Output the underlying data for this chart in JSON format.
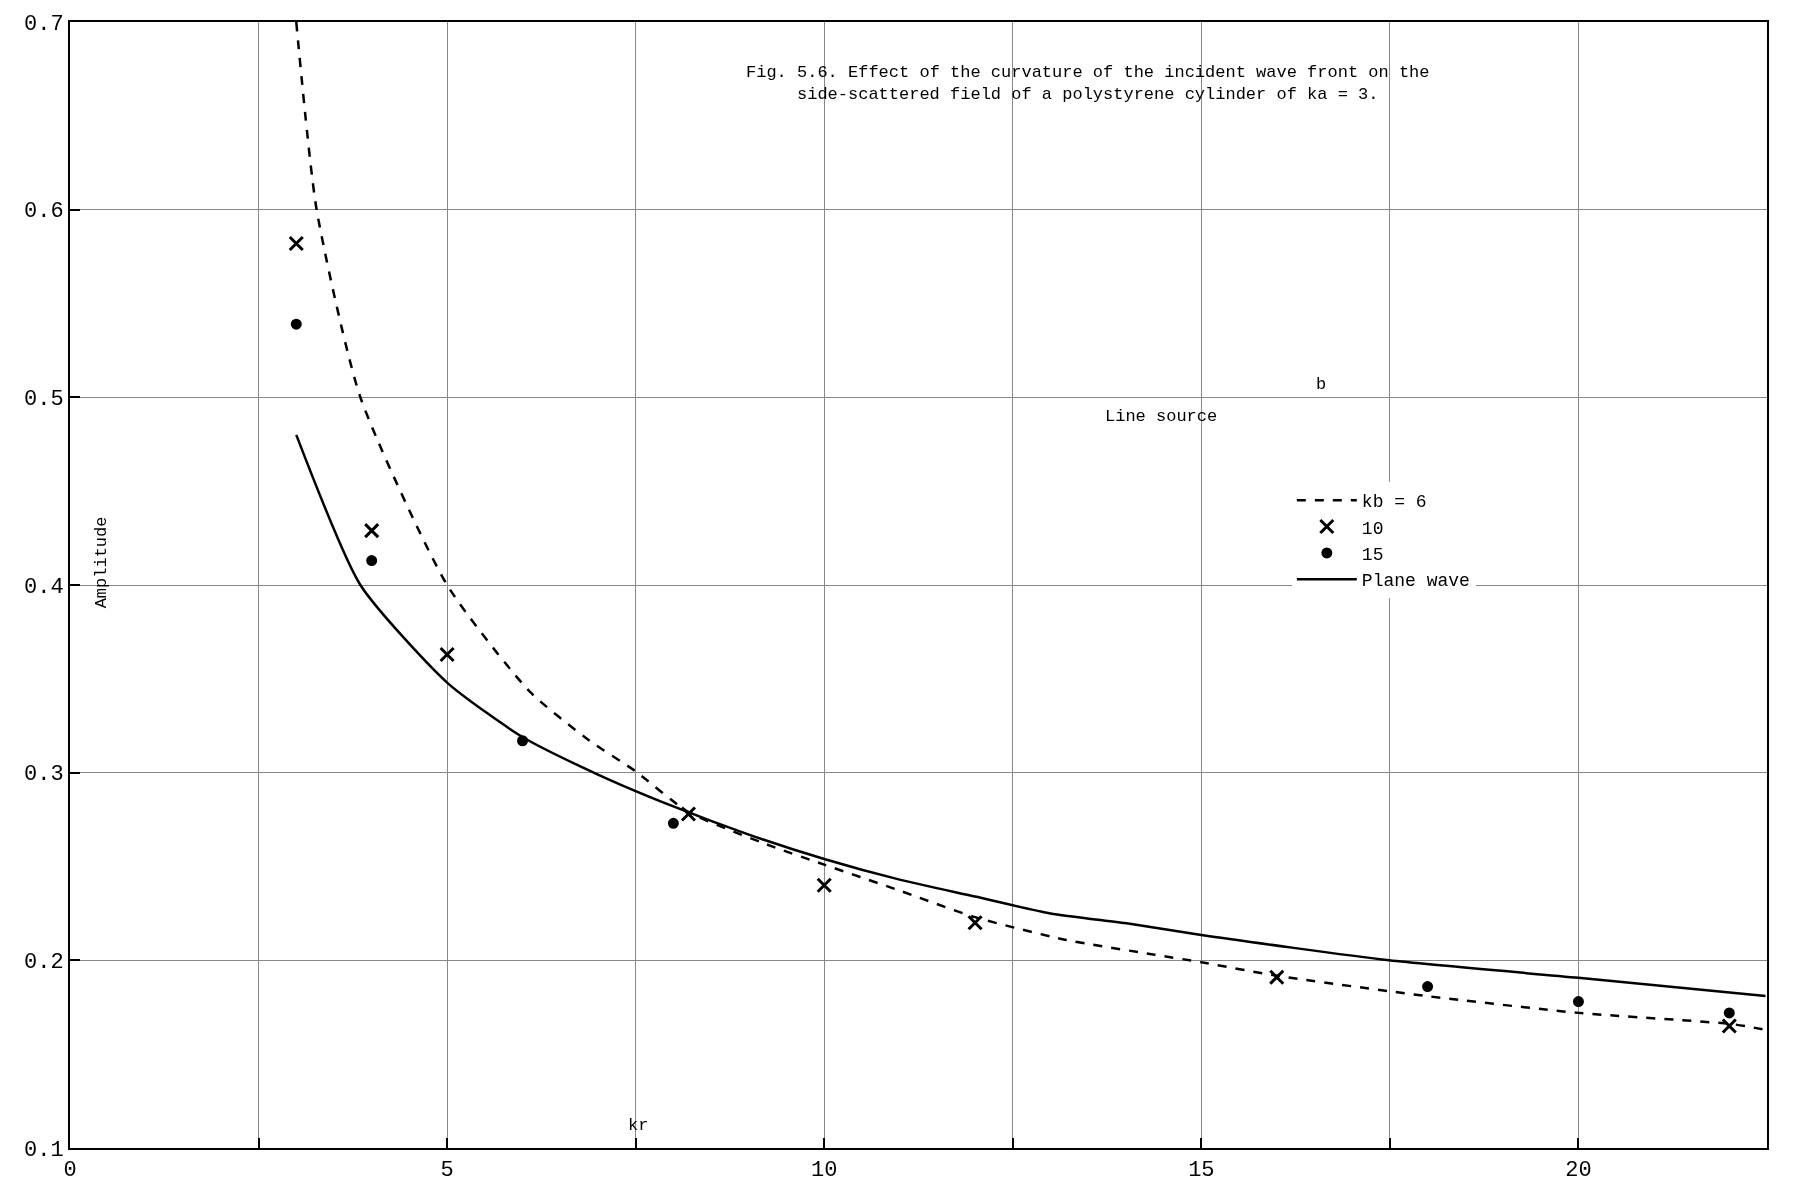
{
  "chart_data": {
    "type": "line",
    "title": "Fig. 5.6. Effect of the curvature of the incident wave front on the side-scattered field of a polystyrene cylinder of ka = 3.",
    "xlabel": "kr",
    "ylabel": "Amplitude",
    "xlim": [
      0,
      22.5
    ],
    "ylim": [
      0.1,
      0.7
    ],
    "xticks": [
      0,
      {
        "value": 2.5,
        "label": null
      },
      5,
      {
        "value": 7.5,
        "label": null
      },
      10,
      {
        "value": 12.5,
        "label": null
      },
      15,
      {
        "value": 17.5,
        "label": null
      },
      20
    ],
    "yticks": [
      0.1,
      0.2,
      0.3,
      0.4,
      0.5,
      0.6,
      0.7
    ],
    "grid": true,
    "legend": "right",
    "annotations": [
      "Line source",
      "b"
    ],
    "series": [
      {
        "name": "kb = 6",
        "line_style": "dashed",
        "marker": "none",
        "color": "#000000",
        "x": [
          3.0,
          3.27,
          3.85,
          5.0,
          6.1,
          6.89,
          7.49,
          8.2,
          9.29,
          10.0,
          10.94,
          12.0,
          13.19,
          14.38,
          15.0,
          15.97,
          17.98,
          20.0,
          22.04,
          22.48
        ],
        "values": [
          0.7,
          0.6,
          0.5,
          0.4,
          0.343,
          0.317,
          0.301,
          0.279,
          0.261,
          0.251,
          0.238,
          0.223,
          0.211,
          0.203,
          0.199,
          0.192,
          0.181,
          0.172,
          0.166,
          0.163
        ]
      },
      {
        "name": "10",
        "type": "scatter",
        "marker": "cross",
        "color": "#000000",
        "x": [
          3,
          4,
          5,
          8.2,
          10,
          12,
          16,
          22
        ],
        "values": [
          0.582,
          0.429,
          0.363,
          0.278,
          0.24,
          0.22,
          0.191,
          0.165
        ]
      },
      {
        "name": "15",
        "type": "scatter",
        "marker": "circle",
        "color": "#000000",
        "x": [
          3,
          4,
          6,
          8,
          18,
          20,
          22
        ],
        "values": [
          0.539,
          0.413,
          0.317,
          0.273,
          0.186,
          0.178,
          0.172
        ]
      },
      {
        "name": "Plane wave",
        "line_style": "solid",
        "marker": "none",
        "color": "#000000",
        "x": [
          3.0,
          3.85,
          5.0,
          6.0,
          7.0,
          8.0,
          9.0,
          10.0,
          11.0,
          12.0,
          13.0,
          14.03,
          15.0,
          17.49,
          20.0,
          22.48
        ],
        "values": [
          0.48,
          0.4,
          0.348,
          0.319,
          0.299,
          0.282,
          0.267,
          0.254,
          0.243,
          0.234,
          0.225,
          0.2196,
          0.2135,
          0.2,
          0.1907,
          0.181
        ]
      }
    ]
  }
}
